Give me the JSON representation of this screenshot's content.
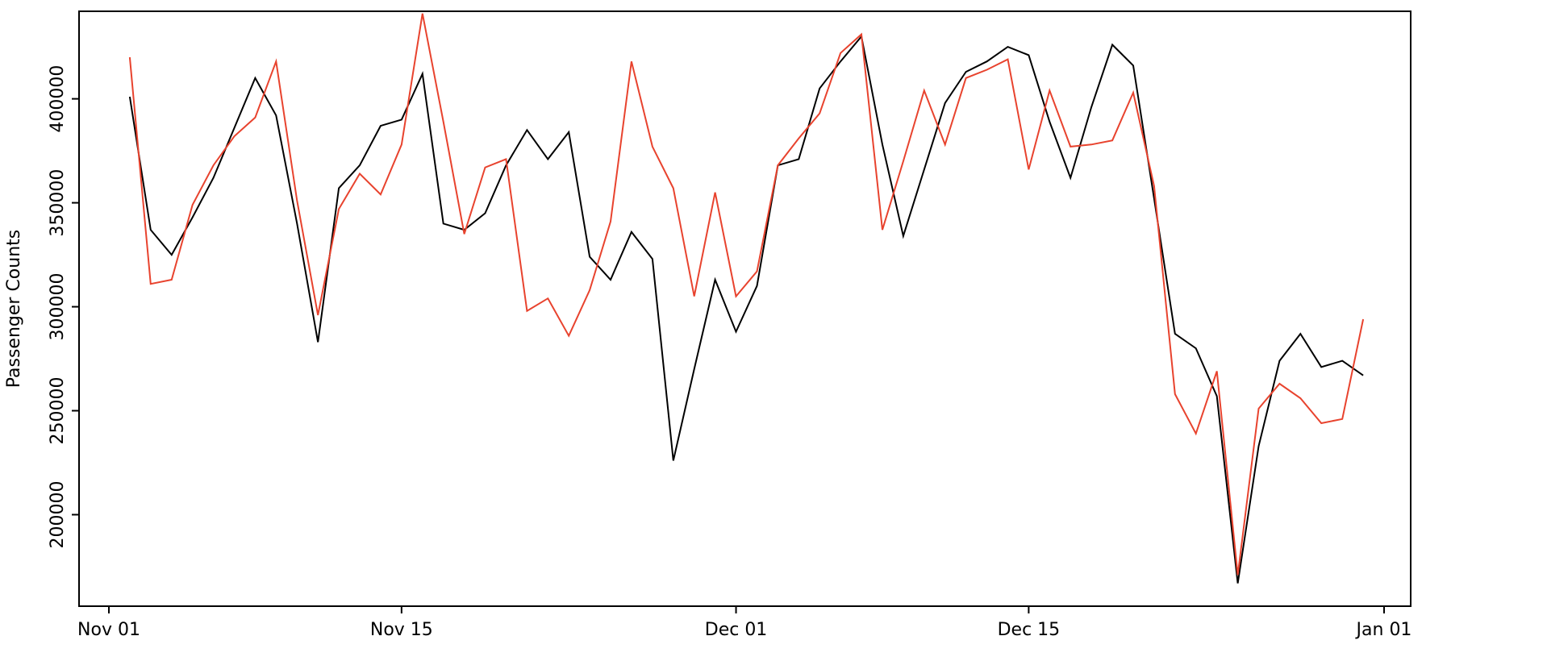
{
  "chart_data": {
    "type": "line",
    "title": "",
    "xlabel": "",
    "ylabel": "Passenger Counts",
    "grid": false,
    "legend": "none",
    "x_axis": {
      "tick_labels": [
        "Nov 01",
        "Nov 15",
        "Dec 01",
        "Dec 15",
        "Jan 01"
      ],
      "tick_day_offsets": [
        0,
        14,
        30,
        44,
        61
      ],
      "range_days": [
        0,
        61
      ]
    },
    "y_axis": {
      "tick_labels": [
        "200000",
        "250000",
        "300000",
        "350000",
        "400000"
      ],
      "tick_values": [
        200000,
        250000,
        300000,
        350000,
        400000
      ],
      "ylim": [
        155990,
        442100
      ]
    },
    "start_day_offset": 1,
    "series": [
      {
        "name": "black-series",
        "color": "#000000",
        "values": [
          401000,
          337000,
          325000,
          343000,
          362000,
          386000,
          410000,
          392000,
          340000,
          283000,
          357000,
          368000,
          387000,
          390000,
          412000,
          340000,
          337000,
          345000,
          368000,
          385000,
          371000,
          384000,
          324000,
          313000,
          336000,
          323000,
          226000,
          270000,
          313000,
          288000,
          310000,
          368000,
          371000,
          405000,
          418000,
          430000,
          378000,
          334000,
          366000,
          398000,
          413000,
          418000,
          425000,
          421000,
          389000,
          362000,
          396000,
          426000,
          416000,
          352000,
          287000,
          280000,
          257000,
          167000,
          233000,
          274000,
          287000,
          271000,
          274000,
          267000
        ]
      },
      {
        "name": "red-series",
        "color": "#e8432e",
        "values": [
          420000,
          311000,
          313000,
          349000,
          368000,
          382000,
          391000,
          418000,
          351000,
          296000,
          347000,
          364000,
          354000,
          378000,
          441000,
          389000,
          335000,
          367000,
          371000,
          298000,
          304000,
          286000,
          308000,
          341000,
          418000,
          377000,
          357000,
          305000,
          355000,
          305000,
          317000,
          368000,
          381000,
          393000,
          422000,
          431000,
          337000,
          370000,
          404000,
          378000,
          410000,
          414000,
          419000,
          366000,
          404000,
          377000,
          378000,
          380000,
          403000,
          358000,
          258000,
          239000,
          269000,
          171000,
          251000,
          263000,
          256000,
          244000,
          246000,
          294000
        ]
      }
    ]
  }
}
